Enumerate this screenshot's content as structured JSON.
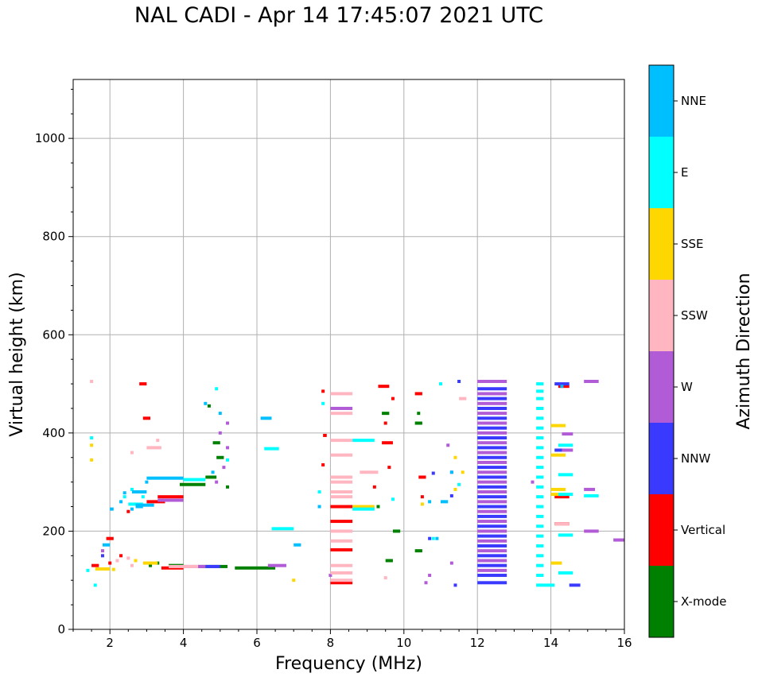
{
  "chart_data": {
    "type": "scatter",
    "title": "NAL CADI - Apr 14 17:45:07 2021 UTC",
    "xlabel": "Frequency (MHz)",
    "ylabel": "Virtual height (km)",
    "xlim": [
      1,
      16
    ],
    "ylim": [
      0,
      1120
    ],
    "xticks": [
      2,
      4,
      6,
      8,
      10,
      12,
      14,
      16
    ],
    "yticks": [
      0,
      200,
      400,
      600,
      800,
      1000
    ],
    "grid": true,
    "colorbar": {
      "label": "Azimuth Direction",
      "categories": [
        {
          "name": "X-mode",
          "color": "#008000"
        },
        {
          "name": "Vertical",
          "color": "#ff0000"
        },
        {
          "name": "NNW",
          "color": "#3a3aff"
        },
        {
          "name": "W",
          "color": "#b25bd6"
        },
        {
          "name": "SSW",
          "color": "#ffb6c1"
        },
        {
          "name": "SSE",
          "color": "#ffd700"
        },
        {
          "name": "E",
          "color": "#00ffff"
        },
        {
          "name": "NNE",
          "color": "#00bfff"
        }
      ]
    },
    "series": [
      {
        "name": "X-mode",
        "segments": [
          [
            3.6,
            4.0,
            130
          ],
          [
            4.4,
            5.2,
            128
          ],
          [
            5.4,
            6.5,
            125
          ],
          [
            3.9,
            4.6,
            295
          ],
          [
            4.6,
            4.9,
            310
          ],
          [
            4.8,
            5.0,
            380
          ],
          [
            4.9,
            5.1,
            350
          ],
          [
            9.4,
            9.6,
            440
          ],
          [
            9.7,
            9.9,
            200
          ],
          [
            10.3,
            10.5,
            420
          ],
          [
            10.3,
            10.5,
            160
          ],
          [
            9.5,
            9.7,
            140
          ]
        ],
        "points": [
          [
            3.1,
            130
          ],
          [
            3.3,
            135
          ],
          [
            4.7,
            455
          ],
          [
            5.2,
            290
          ],
          [
            9.3,
            250
          ],
          [
            10.4,
            440
          ]
        ]
      },
      {
        "name": "Vertical",
        "segments": [
          [
            1.5,
            1.7,
            130
          ],
          [
            1.9,
            2.1,
            185
          ],
          [
            3.4,
            4.0,
            125
          ],
          [
            3.3,
            4.0,
            270
          ],
          [
            3.0,
            3.5,
            260
          ],
          [
            2.8,
            3.0,
            500
          ],
          [
            2.9,
            3.1,
            430
          ],
          [
            8.0,
            8.6,
            250
          ],
          [
            8.0,
            8.6,
            220
          ],
          [
            8.0,
            8.6,
            95
          ],
          [
            8.0,
            8.6,
            162
          ],
          [
            9.4,
            9.7,
            380
          ],
          [
            9.3,
            9.6,
            495
          ],
          [
            14.1,
            14.5,
            215
          ],
          [
            14.1,
            14.5,
            270
          ],
          [
            14.2,
            14.5,
            495
          ],
          [
            10.3,
            10.5,
            480
          ],
          [
            10.4,
            10.6,
            310
          ],
          [
            7.8,
            7.9,
            395
          ]
        ],
        "points": [
          [
            2.0,
            135
          ],
          [
            2.5,
            240
          ],
          [
            9.5,
            420
          ],
          [
            9.7,
            470
          ],
          [
            9.6,
            330
          ],
          [
            9.2,
            290
          ],
          [
            2.3,
            150
          ],
          [
            7.8,
            485
          ],
          [
            7.8,
            335
          ],
          [
            10.5,
            270
          ]
        ]
      },
      {
        "name": "NNW",
        "segments": [
          [
            12.0,
            12.8,
            490
          ],
          [
            12.0,
            12.8,
            470
          ],
          [
            12.0,
            12.8,
            450
          ],
          [
            12.0,
            12.8,
            430
          ],
          [
            12.0,
            12.8,
            410
          ],
          [
            12.0,
            12.8,
            390
          ],
          [
            12.0,
            12.8,
            370
          ],
          [
            12.0,
            12.8,
            350
          ],
          [
            12.0,
            12.8,
            330
          ],
          [
            12.0,
            12.8,
            310
          ],
          [
            12.0,
            12.8,
            290
          ],
          [
            12.0,
            12.8,
            270
          ],
          [
            12.0,
            12.8,
            250
          ],
          [
            12.0,
            12.8,
            230
          ],
          [
            12.0,
            12.8,
            210
          ],
          [
            12.0,
            12.8,
            190
          ],
          [
            12.0,
            12.8,
            170
          ],
          [
            12.0,
            12.8,
            150
          ],
          [
            12.0,
            12.8,
            130
          ],
          [
            12.0,
            12.8,
            110
          ],
          [
            12.0,
            12.8,
            95
          ],
          [
            4.6,
            5.0,
            128
          ],
          [
            14.1,
            14.5,
            500
          ],
          [
            14.1,
            14.4,
            365
          ],
          [
            14.5,
            14.8,
            90
          ]
        ],
        "points": [
          [
            1.8,
            150
          ],
          [
            11.5,
            505
          ],
          [
            11.3,
            272
          ],
          [
            11.4,
            90
          ],
          [
            10.8,
            318
          ],
          [
            10.7,
            185
          ]
        ]
      },
      {
        "name": "W",
        "segments": [
          [
            12.0,
            12.8,
            505
          ],
          [
            12.0,
            12.8,
            480
          ],
          [
            12.0,
            12.8,
            460
          ],
          [
            12.0,
            12.8,
            440
          ],
          [
            12.0,
            12.8,
            420
          ],
          [
            12.0,
            12.8,
            400
          ],
          [
            12.0,
            12.8,
            380
          ],
          [
            12.0,
            12.8,
            360
          ],
          [
            12.0,
            12.8,
            340
          ],
          [
            12.0,
            12.8,
            320
          ],
          [
            12.0,
            12.8,
            300
          ],
          [
            12.0,
            12.8,
            280
          ],
          [
            12.0,
            12.8,
            260
          ],
          [
            12.0,
            12.8,
            240
          ],
          [
            12.0,
            12.8,
            220
          ],
          [
            12.0,
            12.8,
            200
          ],
          [
            12.0,
            12.8,
            180
          ],
          [
            12.0,
            12.8,
            160
          ],
          [
            12.0,
            12.8,
            140
          ],
          [
            12.0,
            12.8,
            120
          ],
          [
            3.3,
            4.0,
            263
          ],
          [
            4.0,
            4.6,
            128
          ],
          [
            6.3,
            6.8,
            130
          ],
          [
            14.9,
            15.3,
            505
          ],
          [
            14.9,
            15.2,
            285
          ],
          [
            14.9,
            15.3,
            200
          ],
          [
            15.7,
            16.0,
            182
          ],
          [
            14.3,
            14.6,
            398
          ],
          [
            14.3,
            14.6,
            365
          ],
          [
            8.0,
            8.6,
            450
          ]
        ],
        "points": [
          [
            1.8,
            160
          ],
          [
            5.2,
            370
          ],
          [
            5.1,
            330
          ],
          [
            5.0,
            400
          ],
          [
            4.9,
            300
          ],
          [
            5.2,
            420
          ],
          [
            11.3,
            320
          ],
          [
            11.3,
            135
          ],
          [
            10.7,
            110
          ],
          [
            10.6,
            95
          ],
          [
            13.5,
            300
          ],
          [
            11.2,
            375
          ],
          [
            8.0,
            110
          ]
        ]
      },
      {
        "name": "SSW",
        "segments": [
          [
            8.0,
            8.6,
            480
          ],
          [
            8.0,
            8.6,
            440
          ],
          [
            8.0,
            8.6,
            385
          ],
          [
            8.0,
            8.6,
            355
          ],
          [
            8.0,
            8.6,
            310
          ],
          [
            8.0,
            8.6,
            300
          ],
          [
            8.0,
            8.6,
            280
          ],
          [
            8.0,
            8.6,
            270
          ],
          [
            8.0,
            8.6,
            200
          ],
          [
            8.0,
            8.6,
            180
          ],
          [
            8.0,
            8.6,
            130
          ],
          [
            8.0,
            8.6,
            115
          ],
          [
            8.0,
            8.6,
            100
          ],
          [
            3.6,
            4.4,
            128
          ],
          [
            3.0,
            3.4,
            370
          ],
          [
            8.8,
            9.3,
            320
          ],
          [
            14.1,
            14.5,
            215
          ],
          [
            11.5,
            11.7,
            470
          ]
        ],
        "points": [
          [
            1.5,
            505
          ],
          [
            2.2,
            140
          ],
          [
            2.5,
            145
          ],
          [
            2.6,
            130
          ],
          [
            3.3,
            385
          ],
          [
            2.6,
            360
          ],
          [
            9.5,
            105
          ]
        ]
      },
      {
        "name": "SSE",
        "segments": [
          [
            1.6,
            2.0,
            123
          ],
          [
            8.6,
            9.2,
            250
          ],
          [
            14.0,
            14.4,
            415
          ],
          [
            14.0,
            14.4,
            355
          ],
          [
            14.0,
            14.4,
            285
          ],
          [
            14.0,
            14.4,
            275
          ],
          [
            14.0,
            14.3,
            135
          ],
          [
            2.9,
            3.3,
            135
          ]
        ],
        "points": [
          [
            1.5,
            345
          ],
          [
            1.5,
            375
          ],
          [
            2.1,
            122
          ],
          [
            2.7,
            140
          ],
          [
            7.0,
            100
          ],
          [
            11.4,
            350
          ],
          [
            11.4,
            285
          ],
          [
            10.5,
            255
          ],
          [
            11.6,
            320
          ]
        ]
      },
      {
        "name": "E",
        "segments": [
          [
            13.6,
            13.8,
            500
          ],
          [
            13.6,
            13.8,
            485
          ],
          [
            13.6,
            13.8,
            470
          ],
          [
            13.6,
            13.8,
            450
          ],
          [
            13.6,
            13.8,
            430
          ],
          [
            13.6,
            13.8,
            410
          ],
          [
            13.6,
            13.8,
            390
          ],
          [
            13.6,
            13.8,
            370
          ],
          [
            13.6,
            13.8,
            350
          ],
          [
            13.6,
            13.8,
            330
          ],
          [
            13.6,
            13.8,
            310
          ],
          [
            13.6,
            13.8,
            290
          ],
          [
            13.6,
            13.8,
            270
          ],
          [
            13.6,
            13.8,
            250
          ],
          [
            13.6,
            13.8,
            230
          ],
          [
            13.6,
            13.8,
            210
          ],
          [
            13.6,
            13.8,
            190
          ],
          [
            13.6,
            13.8,
            170
          ],
          [
            13.6,
            13.8,
            150
          ],
          [
            13.6,
            13.8,
            130
          ],
          [
            13.6,
            13.8,
            110
          ],
          [
            13.6,
            14.1,
            90
          ],
          [
            8.6,
            9.2,
            385
          ],
          [
            8.6,
            9.2,
            245
          ],
          [
            6.4,
            7.0,
            205
          ],
          [
            6.2,
            6.6,
            368
          ],
          [
            14.2,
            14.6,
            275
          ],
          [
            14.2,
            14.6,
            375
          ],
          [
            14.2,
            14.6,
            115
          ],
          [
            14.2,
            14.6,
            315
          ],
          [
            14.2,
            14.6,
            192
          ],
          [
            14.9,
            15.3,
            272
          ],
          [
            4.0,
            4.6,
            305
          ],
          [
            2.5,
            2.9,
            255
          ]
        ],
        "points": [
          [
            1.5,
            390
          ],
          [
            2.4,
            270
          ],
          [
            2.6,
            285
          ],
          [
            2.9,
            270
          ],
          [
            4.9,
            490
          ],
          [
            5.2,
            345
          ],
          [
            9.7,
            265
          ],
          [
            7.8,
            460
          ],
          [
            7.7,
            280
          ],
          [
            11.0,
            500
          ],
          [
            11.5,
            295
          ],
          [
            10.8,
            185
          ],
          [
            1.6,
            90
          ],
          [
            1.4,
            120
          ]
        ]
      },
      {
        "name": "NNE",
        "segments": [
          [
            3.0,
            4.0,
            308
          ],
          [
            2.0,
            2.1,
            245
          ],
          [
            2.6,
            3.0,
            280
          ],
          [
            2.7,
            3.2,
            253
          ],
          [
            6.1,
            6.4,
            430
          ],
          [
            7.0,
            7.2,
            172
          ],
          [
            11.0,
            11.2,
            260
          ],
          [
            1.8,
            2.0,
            172
          ],
          [
            2.7,
            2.9,
            250
          ]
        ],
        "points": [
          [
            2.3,
            260
          ],
          [
            2.4,
            278
          ],
          [
            2.6,
            245
          ],
          [
            3.0,
            300
          ],
          [
            5.0,
            440
          ],
          [
            4.6,
            460
          ],
          [
            7.7,
            250
          ],
          [
            10.9,
            185
          ],
          [
            10.7,
            260
          ],
          [
            14.3,
            495
          ],
          [
            11.3,
            320
          ],
          [
            4.8,
            320
          ]
        ]
      }
    ]
  }
}
